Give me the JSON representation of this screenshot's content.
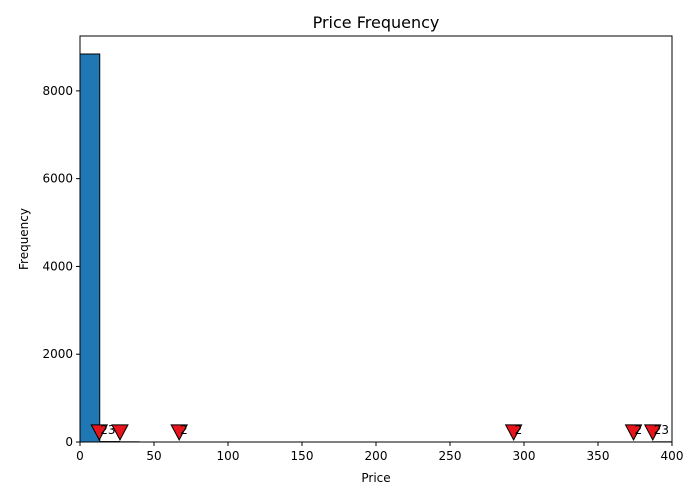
{
  "chart_data": {
    "type": "bar",
    "title": "Price Frequency",
    "xlabel": "Price",
    "ylabel": "Frequency",
    "xlim": [
      0,
      400
    ],
    "ylim": [
      0,
      9250
    ],
    "xticks": [
      "0",
      "50",
      "100",
      "150",
      "200",
      "250",
      "300",
      "350",
      "400"
    ],
    "yticks": [
      "0",
      "2000",
      "4000",
      "6000",
      "8000"
    ],
    "grid": false,
    "bar_color": "#1f77b4",
    "bin_width": 13.33,
    "bins": [
      {
        "x0": 0,
        "x1": 13.33,
        "count": 8840
      },
      {
        "x0": 13.33,
        "x1": 26.67,
        "count": 10
      },
      {
        "x0": 26.67,
        "x1": 40,
        "count": 4
      },
      {
        "x0": 386.67,
        "x1": 400,
        "count": 4
      }
    ],
    "marker_color": "#e8141b",
    "annotations": [
      {
        "x": 13,
        "y": 230,
        "text": "23"
      },
      {
        "x": 27,
        "y": 230,
        "text": ""
      },
      {
        "x": 67,
        "y": 230,
        "text": "2"
      },
      {
        "x": 293,
        "y": 230,
        "text": "2"
      },
      {
        "x": 374,
        "y": 230,
        "text": "2"
      },
      {
        "x": 387,
        "y": 230,
        "text": "23"
      }
    ]
  }
}
